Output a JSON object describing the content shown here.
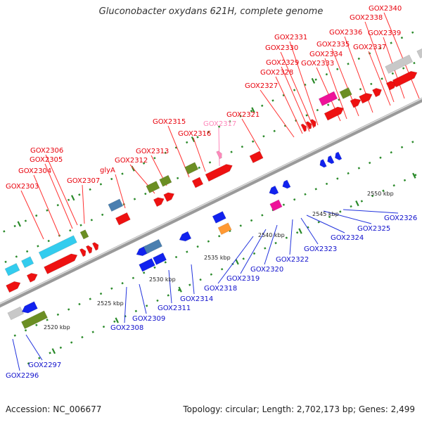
{
  "title": "Gluconobacter oxydans 621H, complete genome",
  "footer": {
    "accession": "Accession: NC_006677",
    "summary": "Topology: circular; Length: 2,702,173 bp; Genes: 2,499"
  },
  "colors": {
    "forward_label": "#e8000b",
    "reverse_label": "#1010cc",
    "light_label": "#ff88bb",
    "backbone": "#888888",
    "tick": "#2a8a2a",
    "red": "#ee1111",
    "blue": "#1122ee",
    "cyan": "#33ccee",
    "steelblue": "#4a7fb0",
    "olive": "#6b8e23",
    "magenta": "#ee1199",
    "gray": "#c8c8c8",
    "lime": "#aadd22",
    "orange": "#ff9933",
    "pink": "#ff88bb"
  },
  "scale_labels": [
    "2520 kbp",
    "2525 kbp",
    "2530 kbp",
    "2535 kbp",
    "2540 kbp",
    "2545 kbp",
    "2550 kbp"
  ],
  "top_gene_labels": [
    {
      "text": "GOX2303",
      "color": "red"
    },
    {
      "text": "GOX2304",
      "color": "red"
    },
    {
      "text": "GOX2305",
      "color": "red"
    },
    {
      "text": "GOX2306",
      "color": "red"
    },
    {
      "text": "GOX2307",
      "color": "red"
    },
    {
      "text": "glyA",
      "color": "red"
    },
    {
      "text": "GOX2312",
      "color": "red"
    },
    {
      "text": "GOX2313",
      "color": "red"
    },
    {
      "text": "GOX2315",
      "color": "red"
    },
    {
      "text": "GOX2316",
      "color": "red"
    },
    {
      "text": "GOX2317",
      "color": "pink"
    },
    {
      "text": "GOX2321",
      "color": "red"
    },
    {
      "text": "GOX2327",
      "color": "red"
    },
    {
      "text": "GOX2328",
      "color": "red"
    },
    {
      "text": "GOX2329",
      "color": "red"
    },
    {
      "text": "GOX2330",
      "color": "red"
    },
    {
      "text": "GOX2331",
      "color": "red"
    },
    {
      "text": "GOX2333",
      "color": "red"
    },
    {
      "text": "GOX2334",
      "color": "red"
    },
    {
      "text": "GOX2335",
      "color": "red"
    },
    {
      "text": "GOX2336",
      "color": "red"
    },
    {
      "text": "GOX2337",
      "color": "red"
    },
    {
      "text": "GOX2338",
      "color": "red"
    },
    {
      "text": "GOX2339",
      "color": "red"
    },
    {
      "text": "GOX2340",
      "color": "red"
    }
  ],
  "bottom_gene_labels": [
    {
      "text": "GOX2296"
    },
    {
      "text": "GOX2297"
    },
    {
      "text": "GOX2308"
    },
    {
      "text": "GOX2309"
    },
    {
      "text": "GOX2311"
    },
    {
      "text": "GOX2314"
    },
    {
      "text": "GOX2318"
    },
    {
      "text": "GOX2319"
    },
    {
      "text": "GOX2320"
    },
    {
      "text": "GOX2322"
    },
    {
      "text": "GOX2323"
    },
    {
      "text": "GOX2324"
    },
    {
      "text": "GOX2325"
    },
    {
      "text": "GOX2326"
    }
  ]
}
